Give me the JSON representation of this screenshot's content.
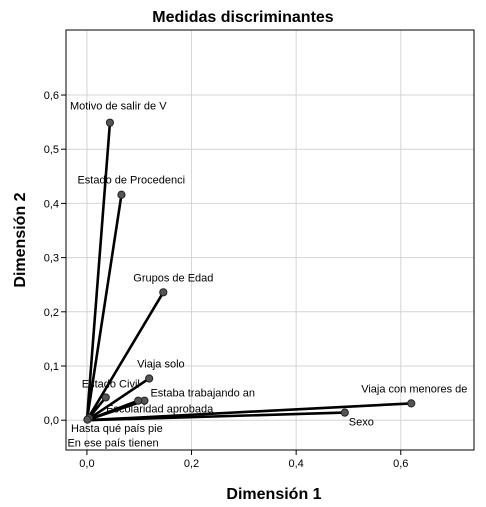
{
  "chart_data": {
    "type": "scatter",
    "title": "Medidas discriminantes",
    "xlabel": "Dimensión 1",
    "ylabel": "Dimensión 2",
    "xlim": [
      -0.04,
      0.74
    ],
    "ylim": [
      -0.055,
      0.72
    ],
    "xticks": [
      0.0,
      0.2,
      0.4,
      0.6
    ],
    "xtick_labels": [
      "0,0",
      "0,2",
      "0,4",
      "0,6"
    ],
    "yticks": [
      0.0,
      0.1,
      0.2,
      0.3,
      0.4,
      0.5,
      0.6
    ],
    "ytick_labels": [
      "0,0",
      "0,1",
      "0,2",
      "0,3",
      "0,4",
      "0,5",
      "0,6"
    ],
    "grid": true,
    "lines_from_origin": true,
    "point_color": "#555555",
    "line_color": "#000000",
    "points": [
      {
        "label": "Motivo de salir de V",
        "x": 0.044,
        "y": 0.549
      },
      {
        "label": "Estado de Procedenci",
        "x": 0.066,
        "y": 0.416
      },
      {
        "label": "Grupos de Edad",
        "x": 0.146,
        "y": 0.236
      },
      {
        "label": "Viaja solo",
        "x": 0.119,
        "y": 0.077
      },
      {
        "label": "Estado Civil",
        "x": 0.036,
        "y": 0.042
      },
      {
        "label": "Estaba trabajando an",
        "x": 0.11,
        "y": 0.036
      },
      {
        "label": "Escolaridad aprobada",
        "x": 0.098,
        "y": 0.036
      },
      {
        "label": "Viaja con menores de",
        "x": 0.62,
        "y": 0.031
      },
      {
        "label": "Sexo",
        "x": 0.493,
        "y": 0.014
      },
      {
        "label": "Hasta qué país pie",
        "x": 0.004,
        "y": 0.004
      },
      {
        "label": "En ese país tienen",
        "x": 0.001,
        "y": 0.001
      }
    ]
  }
}
